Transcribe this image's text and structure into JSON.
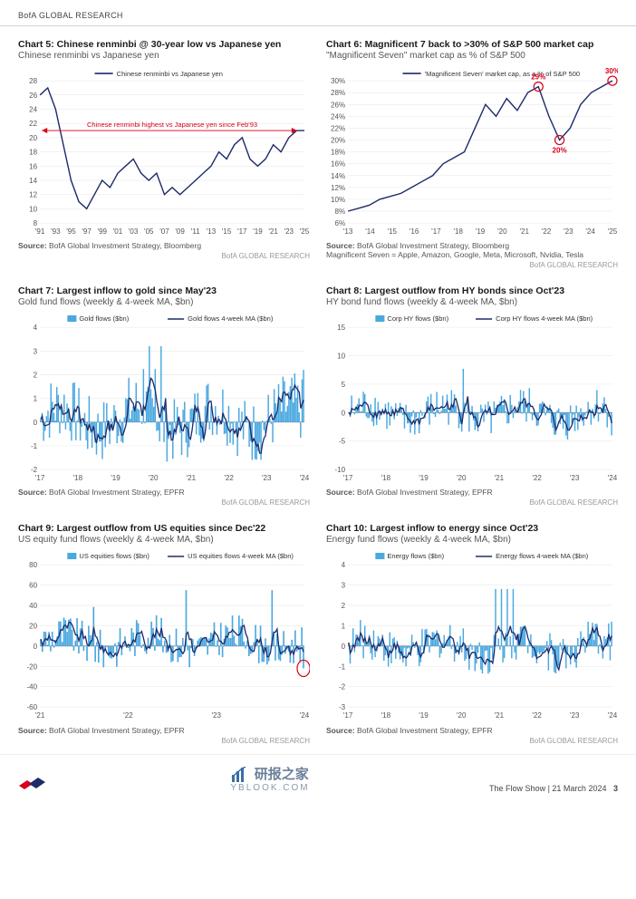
{
  "header": {
    "brand": "BofA GLOBAL RESEARCH"
  },
  "footer": {
    "title": "研报之家",
    "sub": "YBLOOK.COM",
    "show_name": "The Flow Show",
    "date": "21 March 2024",
    "page": "3"
  },
  "charts": {
    "c5": {
      "type": "line",
      "title": "Chart 5: Chinese renminbi @ 30-year low vs Japanese yen",
      "subtitle": "Chinese renminbi vs Japanese yen",
      "legend": [
        "Chinese renminbi vs Japanese yen"
      ],
      "annotation": "Chinese renminbi highest vs Japanese yen since Feb'93",
      "annotation_color": "#d6001c",
      "line_color": "#1d2b6b",
      "grid_color": "#e6e6e6",
      "background_color": "#ffffff",
      "ylim": [
        8,
        28
      ],
      "ytick_step": 2,
      "xticks": [
        "'91",
        "'93",
        "'95",
        "'97",
        "'99",
        "'01",
        "'03",
        "'05",
        "'07",
        "'09",
        "'11",
        "'13",
        "'15",
        "'17",
        "'19",
        "'21",
        "'23",
        "'25"
      ],
      "data": [
        26,
        27,
        24,
        19,
        14,
        11,
        10,
        12,
        14,
        13,
        15,
        16,
        17,
        15,
        14,
        15,
        12,
        13,
        12,
        13,
        14,
        15,
        16,
        18,
        17,
        19,
        20,
        17,
        16,
        17,
        19,
        18,
        20,
        21,
        21
      ],
      "source": "BofA Global Investment Strategy, Bloomberg",
      "brand": "BofA GLOBAL RESEARCH"
    },
    "c6": {
      "type": "line",
      "title": "Chart 6: Magnificent 7 back to >30% of S&P 500 market cap",
      "subtitle": "\"Magnificent Seven\" market cap as % of S&P 500",
      "legend": [
        "'Magnificent Seven' market cap, as a % of S&P 500"
      ],
      "line_color": "#1d2b6b",
      "grid_color": "#e6e6e6",
      "background_color": "#ffffff",
      "ylim": [
        6,
        30
      ],
      "ytick_step": 2,
      "ysuffix": "%",
      "xticks": [
        "'13",
        "'14",
        "'15",
        "'16",
        "'17",
        "'18",
        "'19",
        "'20",
        "'21",
        "'22",
        "'23",
        "'24",
        "'25"
      ],
      "data": [
        8,
        8.5,
        9,
        10,
        10.5,
        11,
        12,
        13,
        14,
        16,
        17,
        18,
        22,
        26,
        24,
        27,
        25,
        28,
        29,
        24,
        20,
        22,
        26,
        28,
        29,
        30
      ],
      "callouts": [
        {
          "idx": 18,
          "label": "29%",
          "color": "#d6001c"
        },
        {
          "idx": 20,
          "label": "20%",
          "color": "#d6001c"
        },
        {
          "idx": 25,
          "label": "30%",
          "color": "#d6001c"
        }
      ],
      "source": "BofA Global Investment Strategy, Bloomberg",
      "footnote": "Magnificent Seven = Apple, Amazon, Google, Meta, Microsoft, Nvidia, Tesla",
      "brand": "BofA GLOBAL RESEARCH"
    },
    "c7": {
      "type": "bar-line",
      "title": "Chart 7: Largest inflow to gold since May'23",
      "subtitle": "Gold fund flows (weekly & 4-week MA, $bn)",
      "legend_bar": "Gold flows ($bn)",
      "legend_line": "Gold flows 4-week MA ($bn)",
      "bar_color": "#4aa8e0",
      "line_color": "#1d2b6b",
      "grid_color": "#e6e6e6",
      "ylim": [
        -2,
        4
      ],
      "ytick_step": 1,
      "xticks": [
        "'17",
        "'18",
        "'19",
        "'20",
        "'21",
        "'22",
        "'23",
        "'24"
      ],
      "n_bars": 180,
      "seed": 7,
      "amp": 1.4,
      "bias": 0.15,
      "spike_idx": [
        70,
        74,
        78,
        82
      ],
      "spike_val": 3.2,
      "last_val": 2.2,
      "source": "BofA Global Investment Strategy, EPFR",
      "brand": "BofA GLOBAL RESEARCH"
    },
    "c8": {
      "type": "bar-line",
      "title": "Chart 8: Largest outflow from HY bonds since Oct'23",
      "subtitle": "HY bond fund flows (weekly & 4-week MA, $bn)",
      "legend_bar": "Corp HY flows ($bn)",
      "legend_line": "Corp HY flows 4-week MA ($bn)",
      "bar_color": "#4aa8e0",
      "line_color": "#1d2b6b",
      "grid_color": "#e6e6e6",
      "ylim": [
        -10,
        15
      ],
      "ytick_step": 5,
      "xticks": [
        "'17",
        "'18",
        "'19",
        "'20",
        "'21",
        "'22",
        "'23",
        "'24"
      ],
      "n_bars": 180,
      "seed": 8,
      "amp": 3.5,
      "bias": -0.2,
      "spike_idx": [
        78
      ],
      "spike_val": 11,
      "last_val": -4,
      "source": "BofA Global Investment Strategy, EPFR",
      "brand": "BofA GLOBAL RESEARCH"
    },
    "c9": {
      "type": "bar-line",
      "title": "Chart 9: Largest outflow from US equities since Dec'22",
      "subtitle": "US equity fund flows (weekly & 4-week MA, $bn)",
      "legend_bar": "US equities flows ($bn)",
      "legend_line": "US equities flows 4-week MA ($bn)",
      "bar_color": "#4aa8e0",
      "line_color": "#1d2b6b",
      "grid_color": "#e6e6e6",
      "ylim": [
        -60,
        80
      ],
      "ytick_step": 20,
      "xticks": [
        "'21",
        "'22",
        "'23",
        "'24"
      ],
      "n_bars": 160,
      "seed": 9,
      "amp": 20,
      "bias": 4,
      "spike_idx": [
        32,
        88,
        140
      ],
      "spike_val": 55,
      "last_val": -22,
      "last_circle": true,
      "circle_color": "#d6001c",
      "source": "BofA Global Investment Strategy, EPFR",
      "brand": "BofA GLOBAL RESEARCH"
    },
    "c10": {
      "type": "bar-line",
      "title": "Chart 10: Largest inflow to energy since Oct'23",
      "subtitle": "Energy fund flows (weekly & 4-week MA, $bn)",
      "legend_bar": "Energy flows ($bn)",
      "legend_line": "Energy flows 4-week MA ($bn)",
      "bar_color": "#4aa8e0",
      "line_color": "#1d2b6b",
      "grid_color": "#e6e6e6",
      "ylim": [
        -3,
        4
      ],
      "ytick_step": 1,
      "xticks": [
        "'17",
        "'18",
        "'19",
        "'20",
        "'21",
        "'22",
        "'23",
        "'24"
      ],
      "n_bars": 180,
      "seed": 10,
      "amp": 1.0,
      "bias": -0.05,
      "spike_idx": [
        100,
        104,
        108,
        112
      ],
      "spike_val": 2.8,
      "last_val": 1.2,
      "source": "BofA Global Investment Strategy, EPFR",
      "brand": "BofA GLOBAL RESEARCH"
    }
  }
}
